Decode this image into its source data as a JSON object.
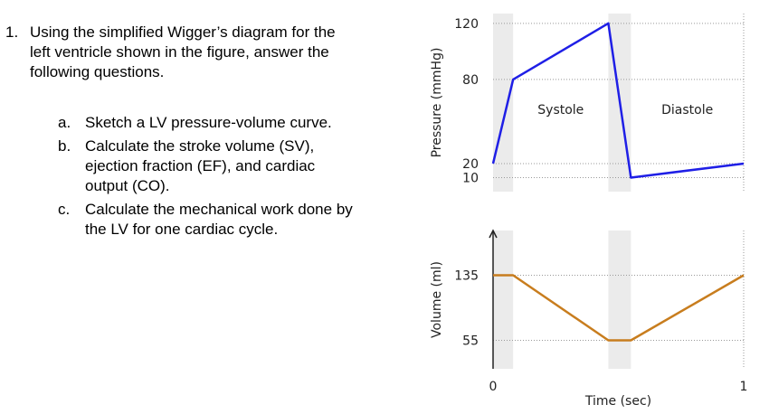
{
  "question": {
    "number": "1.",
    "lines": [
      "Using the simplified Wigger’s diagram for the",
      "left ventricle shown in the figure, answer the",
      "following questions."
    ],
    "items": [
      {
        "label": "a.",
        "lines": [
          "Sketch a LV pressure-volume curve."
        ]
      },
      {
        "label": "b.",
        "lines": [
          "Calculate the stroke volume (SV),",
          "ejection fraction (EF), and cardiac",
          "output (CO)."
        ]
      },
      {
        "label": "c.",
        "lines": [
          "Calculate the mechanical work done by",
          "the LV for one cardiac cycle."
        ]
      }
    ]
  },
  "chart_data": [
    {
      "type": "line",
      "y_label": "Pressure (mmHg)",
      "x": [
        0,
        0.08,
        0.46,
        0.55,
        1
      ],
      "series": [
        {
          "color": "#1f1fe6",
          "values": [
            20,
            80,
            120,
            10,
            20
          ]
        }
      ],
      "xlim": [
        0,
        1
      ],
      "ylim": [
        0,
        127
      ],
      "yticks": [
        10,
        20,
        80,
        120
      ],
      "shaded_regions": [
        [
          0,
          0.08
        ],
        [
          0.46,
          0.55
        ]
      ],
      "annotations": [
        "Systole",
        "Diastole"
      ]
    },
    {
      "type": "line",
      "y_label": "Volume (ml)",
      "x_label": "Time (sec)",
      "x": [
        0,
        0.08,
        0.46,
        0.55,
        1
      ],
      "series": [
        {
          "color": "#c87d1e",
          "values": [
            135,
            135,
            55,
            55,
            135
          ]
        }
      ],
      "xlim": [
        0,
        1
      ],
      "ylim": [
        20,
        190
      ],
      "yticks": [
        55,
        135
      ],
      "xticks": [
        0,
        1
      ],
      "shaded_regions": [
        [
          0,
          0.08
        ],
        [
          0.46,
          0.55
        ]
      ]
    }
  ]
}
